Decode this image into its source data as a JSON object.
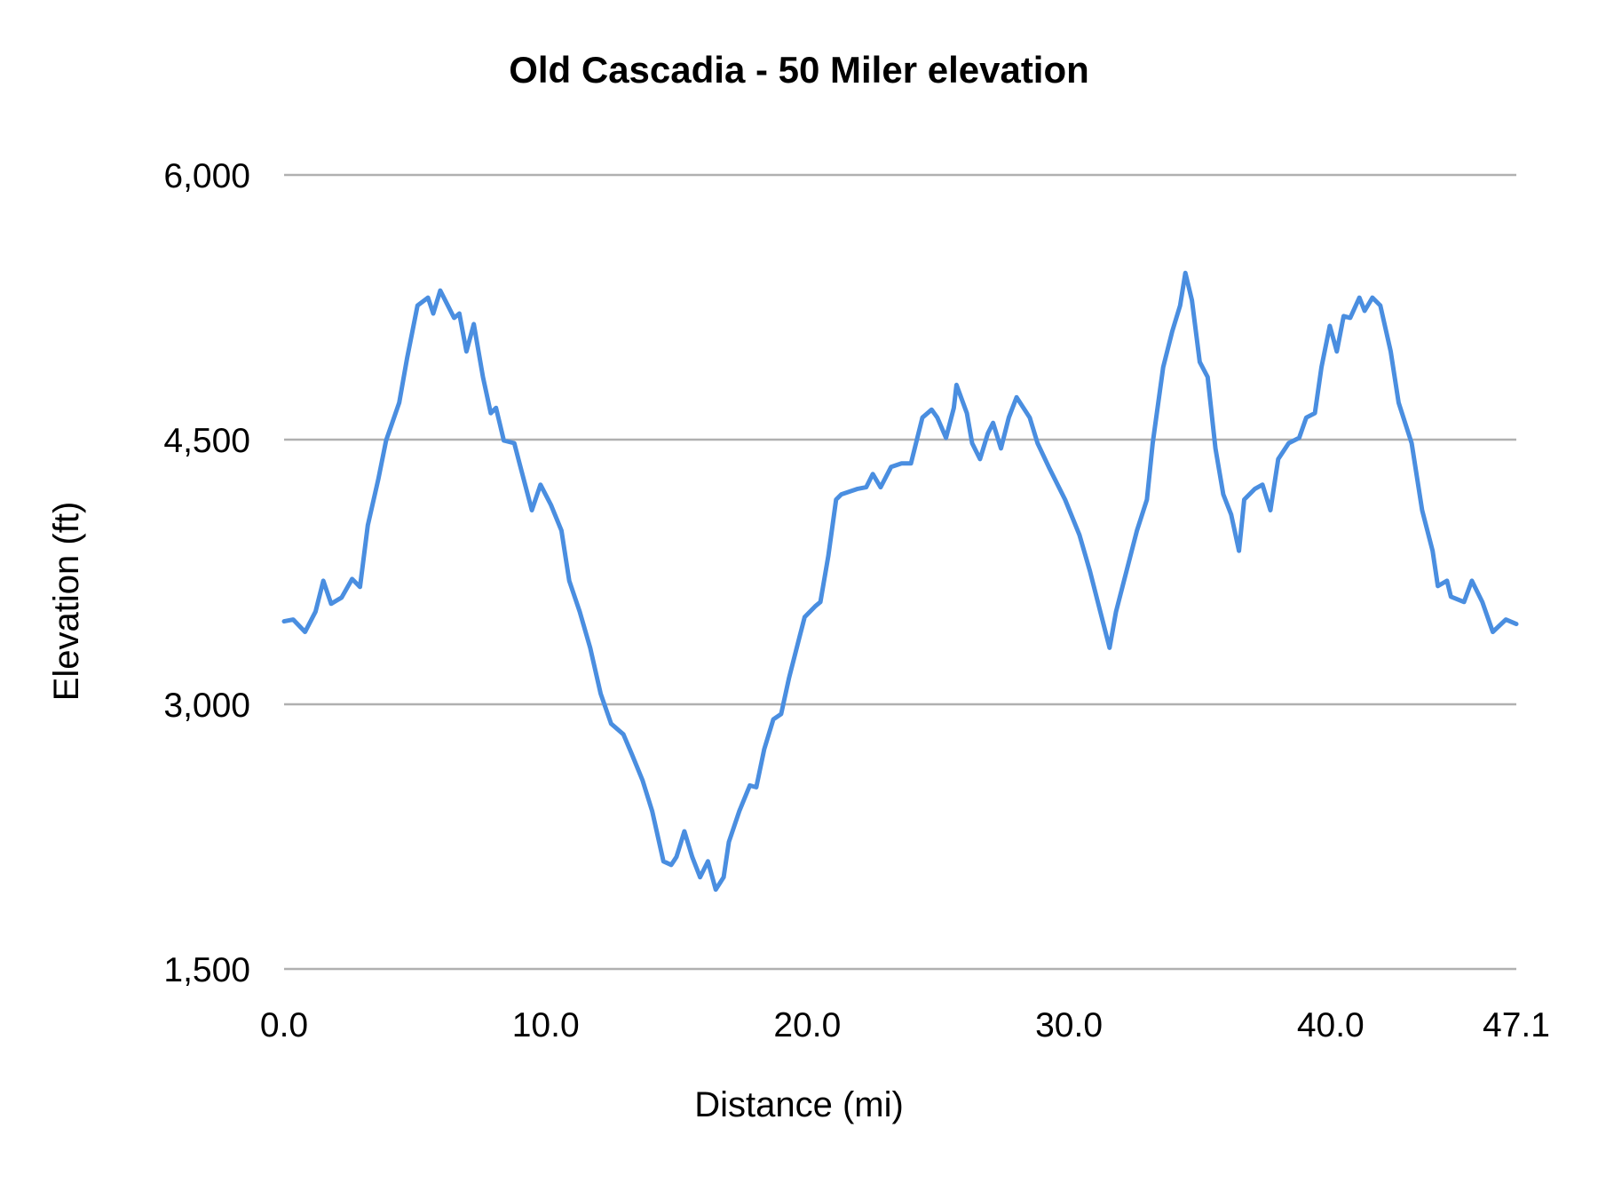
{
  "chart_data": {
    "type": "line",
    "title": "Old Cascadia - 50 Miler elevation",
    "xlabel": "Distance (mi)",
    "ylabel": "Elevation (ft)",
    "xlim": [
      0,
      47.1
    ],
    "ylim": [
      1500,
      6000
    ],
    "xticks": [
      "0.0",
      "10.0",
      "20.0",
      "30.0",
      "40.0",
      "47.1"
    ],
    "yticks": [
      "1,500",
      "3,000",
      "4,500",
      "6,000"
    ],
    "grid": "horizontal",
    "legend": "none",
    "color": "#4a8ee0",
    "series": [
      {
        "x": [
          0,
          0.35,
          0.8,
          1.2,
          1.5,
          1.8,
          2.2,
          2.6,
          2.9,
          3.2,
          3.6,
          3.9,
          4.4,
          4.7,
          5.1,
          5.5,
          5.7,
          5.97,
          6.5,
          6.7,
          6.97,
          7.25,
          7.6,
          7.9,
          8.1,
          8.4,
          8.8,
          9.0,
          9.47,
          9.8,
          10.2,
          10.6,
          10.9,
          11.3,
          11.7,
          12.1,
          12.5,
          12.97,
          13.3,
          13.7,
          14.07,
          14.5,
          14.8,
          15.0,
          15.3,
          15.6,
          15.9,
          16.2,
          16.5,
          16.8,
          17.0,
          17.4,
          17.8,
          18.05,
          18.35,
          18.7,
          19.0,
          19.3,
          19.7,
          19.9,
          20.3,
          20.5,
          20.8,
          21.1,
          21.3,
          21.9,
          22.25,
          22.5,
          22.8,
          23.2,
          23.6,
          23.96,
          24.4,
          24.75,
          24.97,
          25.3,
          25.6,
          25.7,
          26.1,
          26.3,
          26.6,
          26.9,
          27.1,
          27.4,
          27.7,
          28.0,
          28.5,
          28.8,
          29.26,
          29.85,
          30.4,
          30.8,
          31.2,
          31.55,
          31.8,
          32.2,
          32.6,
          32.98,
          33.2,
          33.6,
          33.95,
          34.25,
          34.45,
          34.7,
          35.0,
          35.3,
          35.6,
          35.9,
          36.2,
          36.5,
          36.7,
          37.1,
          37.4,
          37.7,
          38.0,
          38.4,
          38.8,
          39.07,
          39.4,
          39.65,
          39.97,
          40.24,
          40.5,
          40.75,
          41.1,
          41.3,
          41.6,
          41.9,
          42.3,
          42.6,
          43.1,
          43.5,
          43.9,
          44.1,
          44.45,
          44.6,
          45.1,
          45.4,
          45.8,
          46.2,
          46.7,
          47.1
        ],
        "y": [
          3470,
          3480,
          3410,
          3525,
          3700,
          3570,
          3605,
          3710,
          3665,
          4015,
          4275,
          4495,
          4710,
          4960,
          5260,
          5305,
          5215,
          5345,
          5190,
          5215,
          5000,
          5155,
          4855,
          4650,
          4680,
          4495,
          4480,
          4365,
          4100,
          4245,
          4130,
          3985,
          3700,
          3525,
          3320,
          3060,
          2890,
          2830,
          2715,
          2570,
          2395,
          2110,
          2090,
          2135,
          2280,
          2135,
          2020,
          2110,
          1950,
          2020,
          2220,
          2395,
          2540,
          2530,
          2745,
          2915,
          2945,
          3150,
          3380,
          3495,
          3555,
          3580,
          3840,
          4160,
          4190,
          4220,
          4230,
          4305,
          4230,
          4345,
          4365,
          4365,
          4625,
          4670,
          4625,
          4510,
          4680,
          4810,
          4650,
          4480,
          4390,
          4535,
          4595,
          4450,
          4625,
          4740,
          4625,
          4480,
          4335,
          4160,
          3960,
          3755,
          3525,
          3320,
          3525,
          3755,
          3985,
          4160,
          4480,
          4910,
          5115,
          5260,
          5445,
          5290,
          4940,
          4855,
          4450,
          4190,
          4075,
          3870,
          4160,
          4220,
          4245,
          4100,
          4390,
          4480,
          4510,
          4625,
          4650,
          4910,
          5145,
          5000,
          5200,
          5190,
          5305,
          5230,
          5305,
          5260,
          5000,
          4710,
          4480,
          4100,
          3870,
          3670,
          3700,
          3610,
          3580,
          3700,
          3580,
          3410,
          3480,
          3455
        ]
      }
    ]
  }
}
